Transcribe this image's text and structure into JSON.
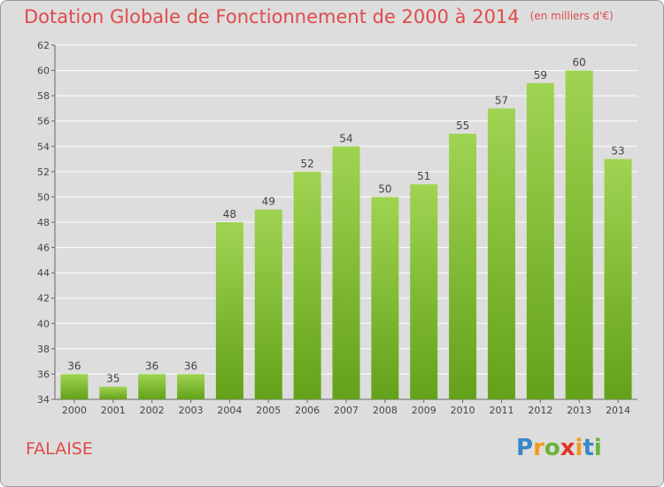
{
  "title": "Dotation Globale de Fonctionnement de 2000 à 2014",
  "unit": "(en milliers d'€)",
  "city": "FALAISE",
  "logo": {
    "letters": [
      "P",
      "r",
      "o",
      "x",
      "i",
      "t",
      "i"
    ],
    "colors": [
      "#3a86c8",
      "#f39a1e",
      "#6ab23a",
      "#e2342a",
      "#f39a1e",
      "#3a86c8",
      "#6ab23a"
    ]
  },
  "colors": {
    "title": "#e14a4a",
    "bar_light": "#9fd452",
    "bar_dark": "#64a11a",
    "background": "#dddddd",
    "grid": "#ffffff"
  },
  "chart_data": {
    "type": "bar",
    "categories": [
      "2000",
      "2001",
      "2002",
      "2003",
      "2004",
      "2005",
      "2006",
      "2007",
      "2008",
      "2009",
      "2010",
      "2011",
      "2012",
      "2013",
      "2014"
    ],
    "values": [
      36,
      35,
      36,
      36,
      48,
      49,
      52,
      54,
      50,
      51,
      55,
      57,
      59,
      60,
      53
    ],
    "data_labels": [
      "36",
      "35",
      "36",
      "36",
      "48",
      "49",
      "52",
      "54",
      "50",
      "51",
      "55",
      "57",
      "59",
      "60",
      "53"
    ],
    "ylim": [
      34,
      62
    ],
    "yticks": [
      "34",
      "36",
      "38",
      "40",
      "42",
      "44",
      "46",
      "48",
      "50",
      "52",
      "54",
      "56",
      "58",
      "60",
      "62"
    ],
    "grid": true
  }
}
